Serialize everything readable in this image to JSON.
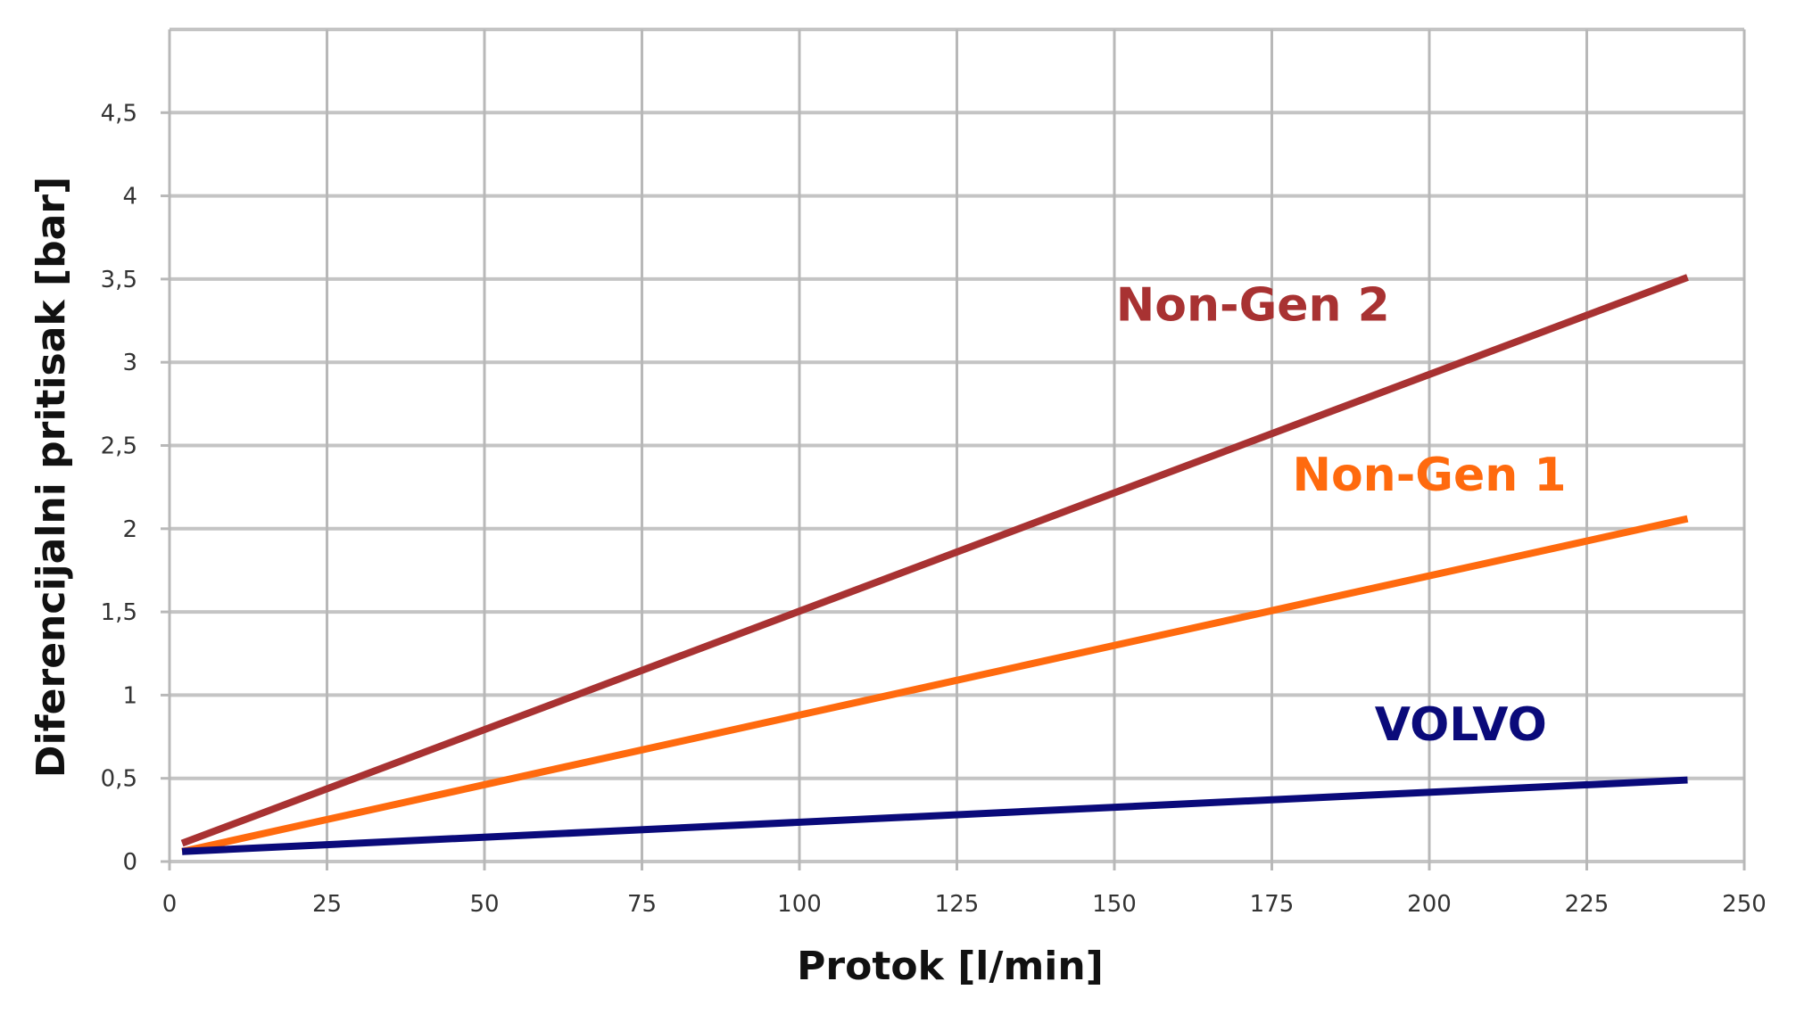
{
  "chart_data": {
    "type": "line",
    "xlabel": "Protok [l/min]",
    "ylabel": "Diferencijalni pritisak [bar]",
    "xlim": [
      0,
      250
    ],
    "ylim": [
      0,
      5
    ],
    "x_ticks": [
      {
        "value": 0,
        "label": "0"
      },
      {
        "value": 25,
        "label": "25"
      },
      {
        "value": 50,
        "label": "50"
      },
      {
        "value": 75,
        "label": "75"
      },
      {
        "value": 100,
        "label": "100"
      },
      {
        "value": 125,
        "label": "125"
      },
      {
        "value": 150,
        "label": "150"
      },
      {
        "value": 175,
        "label": "175"
      },
      {
        "value": 200,
        "label": "200"
      },
      {
        "value": 225,
        "label": "225"
      },
      {
        "value": 250,
        "label": "250"
      }
    ],
    "y_ticks": [
      {
        "value": 0,
        "label": "0"
      },
      {
        "value": 0.5,
        "label": "0,5"
      },
      {
        "value": 1,
        "label": "1"
      },
      {
        "value": 1.5,
        "label": "1,5"
      },
      {
        "value": 2,
        "label": "2"
      },
      {
        "value": 2.5,
        "label": "2,5"
      },
      {
        "value": 3,
        "label": "3"
      },
      {
        "value": 3.5,
        "label": "3,5"
      },
      {
        "value": 4,
        "label": "4"
      },
      {
        "value": 4.5,
        "label": "4,5"
      }
    ],
    "grid": true,
    "series": [
      {
        "name": "Non-Gen 2",
        "color": "#A83232",
        "x": [
          2,
          241
        ],
        "y": [
          0.11,
          3.51
        ],
        "label_at": [
          172,
          3.25
        ]
      },
      {
        "name": "Non-Gen 1",
        "color": "#FF6A0E",
        "x": [
          2,
          241
        ],
        "y": [
          0.06,
          2.06
        ],
        "label_at": [
          200,
          2.23
        ]
      },
      {
        "name": "VOLVO",
        "color": "#0A0A7A",
        "x": [
          2,
          241
        ],
        "y": [
          0.06,
          0.49
        ],
        "label_at": [
          205,
          0.73
        ]
      }
    ]
  }
}
